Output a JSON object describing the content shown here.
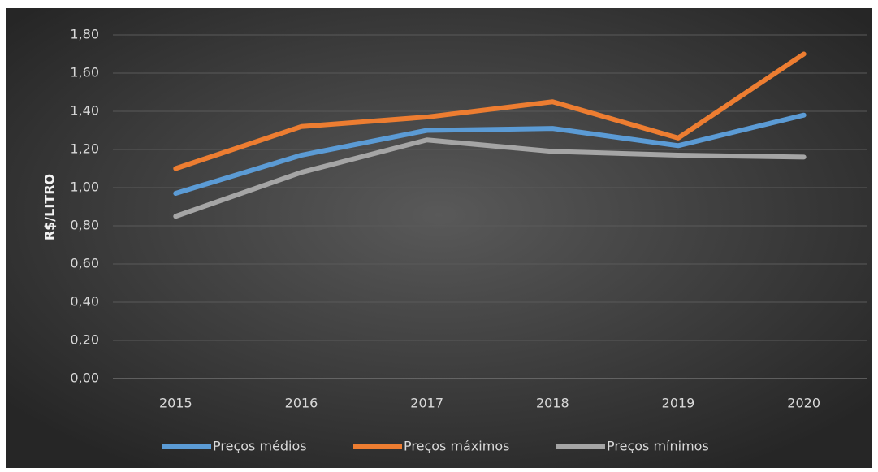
{
  "chart_data": {
    "type": "line",
    "y_label": "R$/LITRO",
    "categories": [
      "2015",
      "2016",
      "2017",
      "2018",
      "2019",
      "2020"
    ],
    "series": [
      {
        "name": "Preços médios",
        "color": "#5b9bd5",
        "values": [
          0.97,
          1.17,
          1.3,
          1.31,
          1.22,
          1.38
        ]
      },
      {
        "name": "Preços máximos",
        "color": "#ed7d31",
        "values": [
          1.1,
          1.32,
          1.37,
          1.45,
          1.26,
          1.7
        ]
      },
      {
        "name": "Preços mínimos",
        "color": "#a5a5a5",
        "values": [
          0.85,
          1.08,
          1.25,
          1.19,
          1.17,
          1.16
        ]
      }
    ],
    "ylim": [
      0,
      1.8
    ],
    "yticks": [
      {
        "value": 0,
        "label": "0,00"
      },
      {
        "value": 0.2,
        "label": "0,20"
      },
      {
        "value": 0.4,
        "label": "0,40"
      },
      {
        "value": 0.6,
        "label": "0,60"
      },
      {
        "value": 0.8,
        "label": "0,80"
      },
      {
        "value": 1.0,
        "label": "1,00"
      },
      {
        "value": 1.2,
        "label": "1,20"
      },
      {
        "value": 1.4,
        "label": "1,40"
      },
      {
        "value": 1.6,
        "label": "1,60"
      },
      {
        "value": 1.8,
        "label": "1,80"
      }
    ],
    "grid": true,
    "legend": "bottom"
  }
}
